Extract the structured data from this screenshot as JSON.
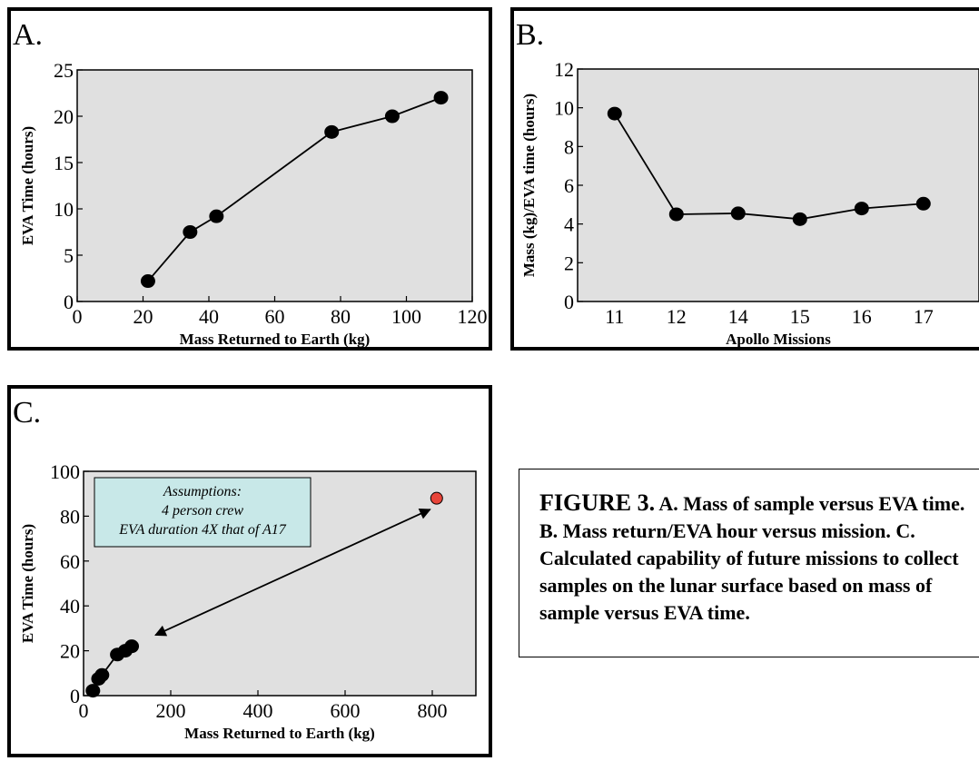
{
  "chart_data": [
    {
      "id": "A",
      "type": "line",
      "panel_label": "A.",
      "xlabel": "Mass Returned to Earth (kg)",
      "ylabel": "EVA Time (hours)",
      "xlim": [
        0,
        120
      ],
      "ylim": [
        0,
        25
      ],
      "xticks": [
        0,
        20,
        40,
        60,
        80,
        100,
        120
      ],
      "yticks": [
        0,
        5,
        10,
        15,
        20,
        25
      ],
      "grid": false,
      "points": [
        {
          "x": 21.5,
          "y": 2.2
        },
        {
          "x": 34.3,
          "y": 7.5
        },
        {
          "x": 42.3,
          "y": 9.2
        },
        {
          "x": 77.3,
          "y": 18.3
        },
        {
          "x": 95.7,
          "y": 20.0
        },
        {
          "x": 110.5,
          "y": 22.0
        }
      ]
    },
    {
      "id": "B",
      "type": "line",
      "panel_label": "B.",
      "xlabel": "Apollo Missions",
      "ylabel": "Mass (kg)/EVA time (hours)",
      "categories": [
        "11",
        "12",
        "14",
        "15",
        "16",
        "17"
      ],
      "values": [
        9.7,
        4.5,
        4.55,
        4.25,
        4.8,
        5.05
      ],
      "ylim": [
        0,
        12
      ],
      "yticks": [
        0,
        2,
        4,
        6,
        8,
        10,
        12
      ],
      "grid": false
    },
    {
      "id": "C",
      "type": "scatter",
      "panel_label": "C.",
      "xlabel": "Mass Returned to Earth (kg)",
      "ylabel": "EVA Time (hours)",
      "xlim": [
        0,
        900
      ],
      "ylim": [
        0,
        100
      ],
      "xticks": [
        0,
        200,
        400,
        600,
        800
      ],
      "yticks": [
        0,
        20,
        40,
        60,
        80,
        100
      ],
      "grid": false,
      "points": [
        {
          "x": 21.5,
          "y": 2.2
        },
        {
          "x": 34.3,
          "y": 7.5
        },
        {
          "x": 42.3,
          "y": 9.2
        },
        {
          "x": 77.3,
          "y": 18.3
        },
        {
          "x": 95.7,
          "y": 20.0
        },
        {
          "x": 110.5,
          "y": 22.0
        }
      ],
      "highlight_point": {
        "x": 810,
        "y": 88,
        "color": "#e8453a"
      },
      "arrow": {
        "from": {
          "x": 795,
          "y": 83
        },
        "to": {
          "x": 165,
          "y": 27
        }
      },
      "annotation": {
        "lines": [
          "Assumptions:",
          "4 person crew",
          "EVA duration 4X that of A17"
        ],
        "fill": "#c8e8e8"
      }
    }
  ],
  "caption": {
    "lead": "FIGURE 3.",
    "body": " A. Mass of sample versus EVA time. B. Mass return/EVA hour versus mission. C. Calculated capability of future missions to collect samples on the lunar surface based on mass of sample versus EVA time."
  },
  "colors": {
    "plot_background": "#e0e0e0",
    "series": "#000000",
    "highlight": "#e8453a",
    "annotation_fill": "#c8e8e8"
  }
}
